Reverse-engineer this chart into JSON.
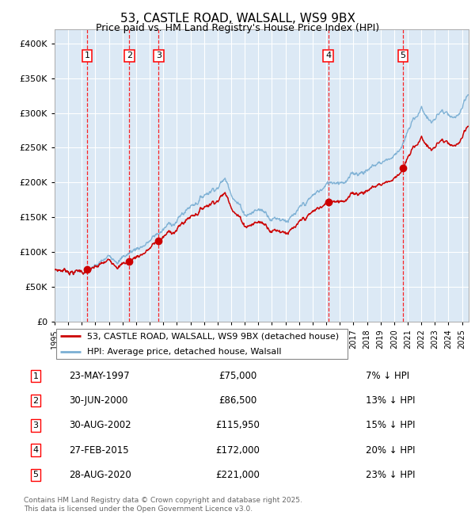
{
  "title1": "53, CASTLE ROAD, WALSALL, WS9 9BX",
  "title2": "Price paid vs. HM Land Registry's House Price Index (HPI)",
  "plot_bg": "#dce9f5",
  "red_color": "#cc0000",
  "blue_color": "#7bafd4",
  "transactions": [
    {
      "num": 1,
      "x_year": 1997.39,
      "price": 75000
    },
    {
      "num": 2,
      "x_year": 2000.5,
      "price": 86500
    },
    {
      "num": 3,
      "x_year": 2002.66,
      "price": 115950
    },
    {
      "num": 4,
      "x_year": 2015.16,
      "price": 172000
    },
    {
      "num": 5,
      "x_year": 2020.66,
      "price": 221000
    }
  ],
  "legend_entries": [
    "53, CASTLE ROAD, WALSALL, WS9 9BX (detached house)",
    "HPI: Average price, detached house, Walsall"
  ],
  "table": [
    {
      "num": 1,
      "date": "23-MAY-1997",
      "price": "£75,000",
      "pct": "7% ↓ HPI"
    },
    {
      "num": 2,
      "date": "30-JUN-2000",
      "price": "£86,500",
      "pct": "13% ↓ HPI"
    },
    {
      "num": 3,
      "date": "30-AUG-2002",
      "price": "£115,950",
      "pct": "15% ↓ HPI"
    },
    {
      "num": 4,
      "date": "27-FEB-2015",
      "price": "£172,000",
      "pct": "20% ↓ HPI"
    },
    {
      "num": 5,
      "date": "28-AUG-2020",
      "price": "£221,000",
      "pct": "23% ↓ HPI"
    }
  ],
  "footnote": "Contains HM Land Registry data © Crown copyright and database right 2025.\nThis data is licensed under the Open Government Licence v3.0.",
  "ylim": [
    0,
    420000
  ],
  "xlim_start": 1995.0,
  "xlim_end": 2025.5
}
